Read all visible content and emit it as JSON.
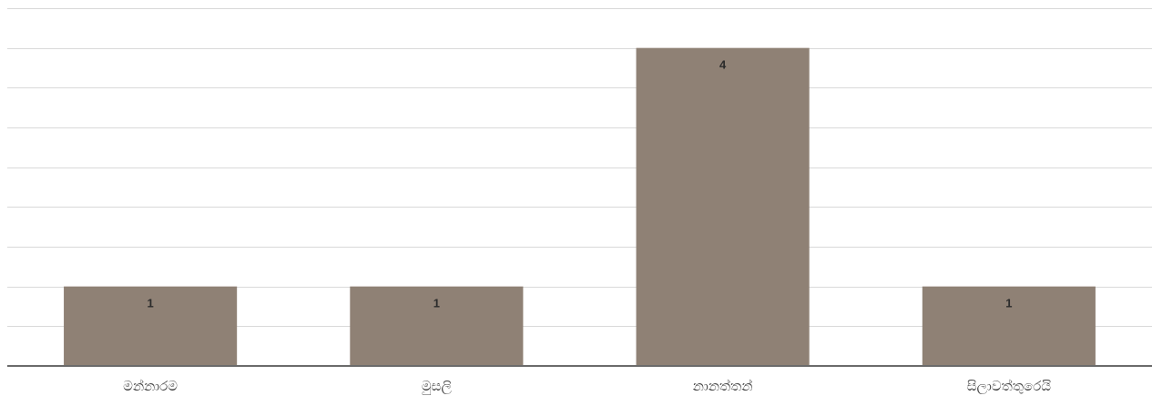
{
  "chart_data": {
    "type": "bar",
    "categories": [
      "මන්නාරම",
      "මුසලි",
      "නානත්තන්",
      "සිලාවත්තුරෙයි"
    ],
    "values": [
      1,
      1,
      4,
      1
    ],
    "data_labels": [
      "1",
      "1",
      "4",
      "1"
    ],
    "title": "",
    "xlabel": "",
    "ylabel": "",
    "ylim": [
      0,
      4.5
    ],
    "grid": true,
    "legend": "none",
    "colors": {
      "bar": "#8f8175",
      "grid": "#d9d9d9",
      "axis": "#6b6b6b",
      "label": "#2b2b2b"
    }
  }
}
